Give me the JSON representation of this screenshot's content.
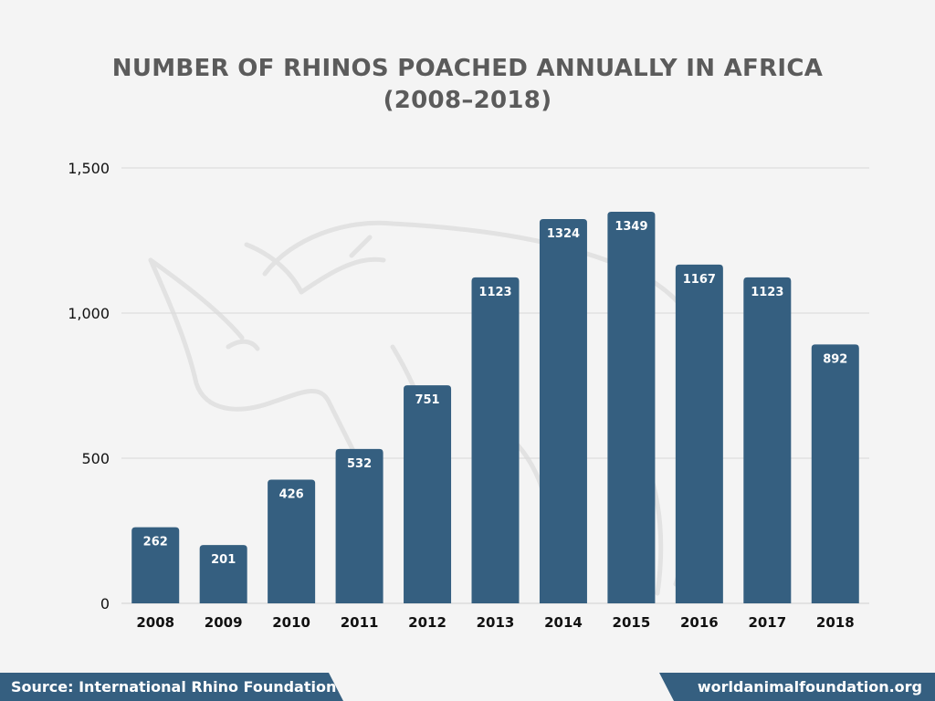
{
  "title": {
    "line1": "NUMBER OF RHINOS POACHED ANNUALLY IN AFRICA",
    "line2": "(2008–2018)"
  },
  "colors": {
    "bar": "#355f80",
    "grid": "#d9d9d9",
    "axis_text": "#111111",
    "bar_label": "#ffffff",
    "title": "#5b5b5b",
    "background": "#f4f4f4"
  },
  "chart_data": {
    "type": "bar",
    "title": "NUMBER OF RHINOS POACHED ANNUALLY IN AFRICA (2008–2018)",
    "categories": [
      "2008",
      "2009",
      "2010",
      "2011",
      "2012",
      "2013",
      "2014",
      "2015",
      "2016",
      "2017",
      "2018"
    ],
    "values": [
      262,
      201,
      426,
      532,
      751,
      1123,
      1324,
      1349,
      1167,
      1123,
      892
    ],
    "ylim": [
      0,
      1500
    ],
    "yticks": [
      0,
      500,
      1000,
      1500
    ],
    "ytick_labels": [
      "0",
      "500",
      "1,000",
      "1,500"
    ],
    "xlabel": "",
    "ylabel": "",
    "grid": true,
    "legend": "none"
  },
  "watermark": {
    "name": "rhino-silhouette-watermark"
  },
  "footer": {
    "source": "Source: International Rhino Foundation",
    "site": "worldanimalfoundation.org"
  }
}
